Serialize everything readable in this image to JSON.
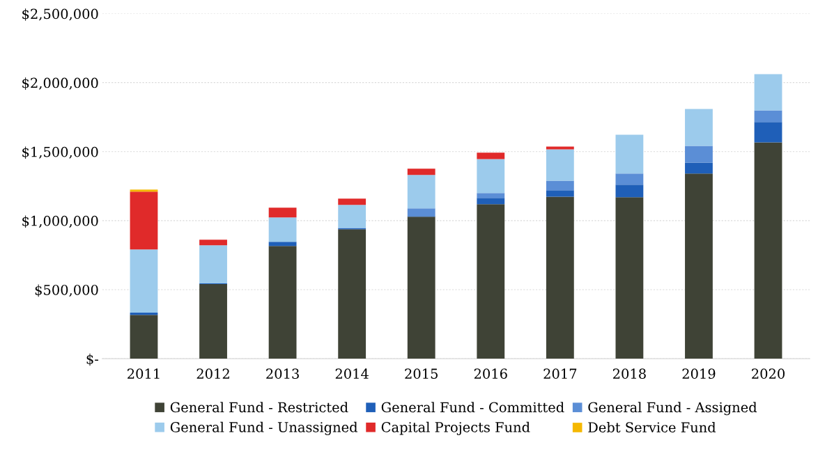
{
  "chart_data": {
    "type": "bar",
    "stacked": true,
    "categories": [
      "2011",
      "2012",
      "2013",
      "2014",
      "2015",
      "2016",
      "2017",
      "2018",
      "2019",
      "2020"
    ],
    "series": [
      {
        "name": "General Fund - Restricted",
        "color": "#3f4336",
        "values": [
          317000,
          540000,
          817000,
          937000,
          1028000,
          1119000,
          1174000,
          1169000,
          1341000,
          1567000
        ]
      },
      {
        "name": "General Fund - Committed",
        "color": "#1f5fb8",
        "values": [
          16000,
          5000,
          30000,
          10000,
          5000,
          45000,
          46000,
          91000,
          80000,
          147000
        ]
      },
      {
        "name": "General Fund - Assigned",
        "color": "#5b8ed6",
        "values": [
          0,
          0,
          0,
          0,
          56000,
          36000,
          70000,
          81000,
          121000,
          85000
        ]
      },
      {
        "name": "General Fund - Unassigned",
        "color": "#9ccbec",
        "values": [
          458000,
          277000,
          176000,
          167000,
          242000,
          246000,
          227000,
          282000,
          267000,
          262000
        ]
      },
      {
        "name": "Capital Projects Fund",
        "color": "#e02a2a",
        "values": [
          419000,
          40000,
          71000,
          45000,
          45000,
          46000,
          20000,
          0,
          0,
          0
        ]
      },
      {
        "name": "Debt Service Fund",
        "color": "#f5b800",
        "values": [
          15000,
          0,
          0,
          0,
          0,
          0,
          0,
          0,
          0,
          0
        ]
      }
    ],
    "ylim": [
      0,
      2500000
    ],
    "yticks": [
      {
        "value": 0,
        "label": "$-"
      },
      {
        "value": 500000,
        "label": "$500,000"
      },
      {
        "value": 1000000,
        "label": "$1,000,000"
      },
      {
        "value": 1500000,
        "label": "$1,500,000"
      },
      {
        "value": 2000000,
        "label": "$2,000,000"
      },
      {
        "value": 2500000,
        "label": "$2,500,000"
      }
    ],
    "grid": "y",
    "legend": "bottom"
  }
}
